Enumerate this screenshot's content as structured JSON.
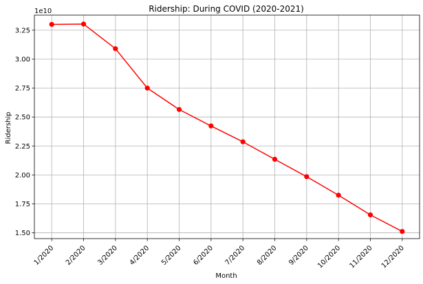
{
  "chart_data": {
    "type": "line",
    "title": "Ridership: During COVID (2020-2021)",
    "xlabel": "Month",
    "ylabel": "Ridership",
    "y_offset_label": "1e10",
    "y_scale_factor": 10000000000,
    "categories": [
      "1/2020",
      "2/2020",
      "3/2020",
      "4/2020",
      "5/2020",
      "6/2020",
      "7/2020",
      "8/2020",
      "9/2020",
      "10/2020",
      "11/2020",
      "12/2020"
    ],
    "series": [
      {
        "values": [
          33000000000,
          33030000000,
          30900000000,
          27500000000,
          25650000000,
          24230000000,
          22860000000,
          21350000000,
          19850000000,
          18250000000,
          16550000000,
          15120000000
        ],
        "color": "#ff0000",
        "marker": "circle"
      }
    ],
    "yticks": [
      "1.50",
      "1.75",
      "2.00",
      "2.25",
      "2.50",
      "2.75",
      "3.00",
      "3.25"
    ],
    "ytick_values": [
      1.5,
      1.75,
      2.0,
      2.25,
      2.5,
      2.75,
      3.0,
      3.25
    ],
    "ylim": [
      1.45,
      3.38
    ],
    "grid": true,
    "xtick_rotation": 45
  }
}
